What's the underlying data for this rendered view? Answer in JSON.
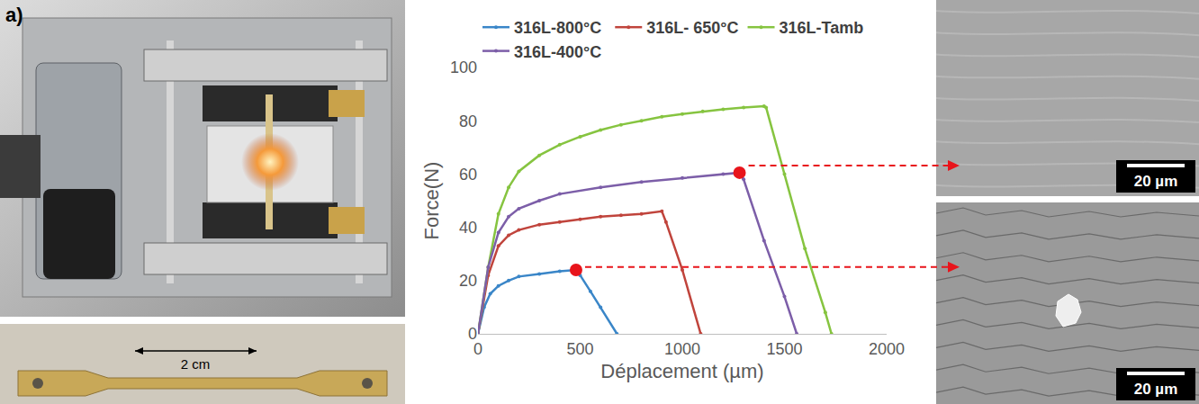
{
  "panel_label": "a)",
  "specimen": {
    "scale_label": "2 cm"
  },
  "micrographs": [
    {
      "scale_label": "20 µm"
    },
    {
      "scale_label": "20 µm"
    }
  ],
  "chart_data": {
    "type": "line",
    "x_label": "Déplacement (µm)",
    "y_label": "Force(N)",
    "xlim": [
      0,
      2000
    ],
    "xticks": [
      0,
      500,
      1000,
      1500,
      2000
    ],
    "ylim": [
      0,
      100
    ],
    "yticks": [
      0,
      20,
      40,
      60,
      80,
      100
    ],
    "grid": false,
    "legend": "top",
    "series": [
      {
        "name": "316L-800°C",
        "color": "#3a86c8",
        "marker": "circle",
        "line_style": "solid",
        "x": [
          0,
          30,
          60,
          100,
          150,
          200,
          300,
          400,
          480,
          500,
          550,
          600,
          680
        ],
        "values": [
          0,
          10,
          15,
          18,
          20,
          21.5,
          22.5,
          23.5,
          24,
          22,
          16,
          10,
          0
        ]
      },
      {
        "name": "316L- 650°C",
        "color": "#c0443c",
        "marker": "circle",
        "line_style": "solid",
        "x": [
          0,
          50,
          100,
          150,
          200,
          300,
          400,
          500,
          600,
          700,
          800,
          900,
          920,
          1000,
          1090
        ],
        "values": [
          0,
          22,
          33,
          37,
          39,
          41,
          42,
          43,
          44,
          44.5,
          45,
          46,
          42,
          24,
          0
        ]
      },
      {
        "name": "316L-Tamb",
        "color": "#86c440",
        "marker": "circle",
        "line_style": "solid",
        "x": [
          0,
          50,
          100,
          150,
          200,
          300,
          400,
          500,
          600,
          700,
          800,
          900,
          1000,
          1100,
          1200,
          1300,
          1400,
          1410,
          1500,
          1600,
          1700,
          1730
        ],
        "values": [
          0,
          25,
          45,
          55,
          61,
          67,
          71,
          74,
          76.5,
          78.5,
          80,
          81.5,
          82.5,
          83.5,
          84.3,
          85,
          85.5,
          85,
          60,
          32,
          8,
          0
        ]
      },
      {
        "name": "316L-400°C",
        "color": "#7c5ea8",
        "marker": "circle",
        "line_style": "solid",
        "x": [
          0,
          50,
          100,
          150,
          200,
          300,
          400,
          600,
          800,
          1000,
          1200,
          1280,
          1300,
          1400,
          1500,
          1560
        ],
        "values": [
          0,
          25,
          38,
          44,
          47,
          50,
          52.5,
          55,
          57,
          58.5,
          60,
          60.5,
          58,
          35,
          14,
          0
        ]
      }
    ],
    "highlights": [
      {
        "series": "316L-400°C",
        "x": 1280,
        "y": 60.5,
        "color": "#e8141b"
      },
      {
        "series": "316L-800°C",
        "x": 480,
        "y": 24,
        "color": "#e8141b"
      }
    ]
  }
}
